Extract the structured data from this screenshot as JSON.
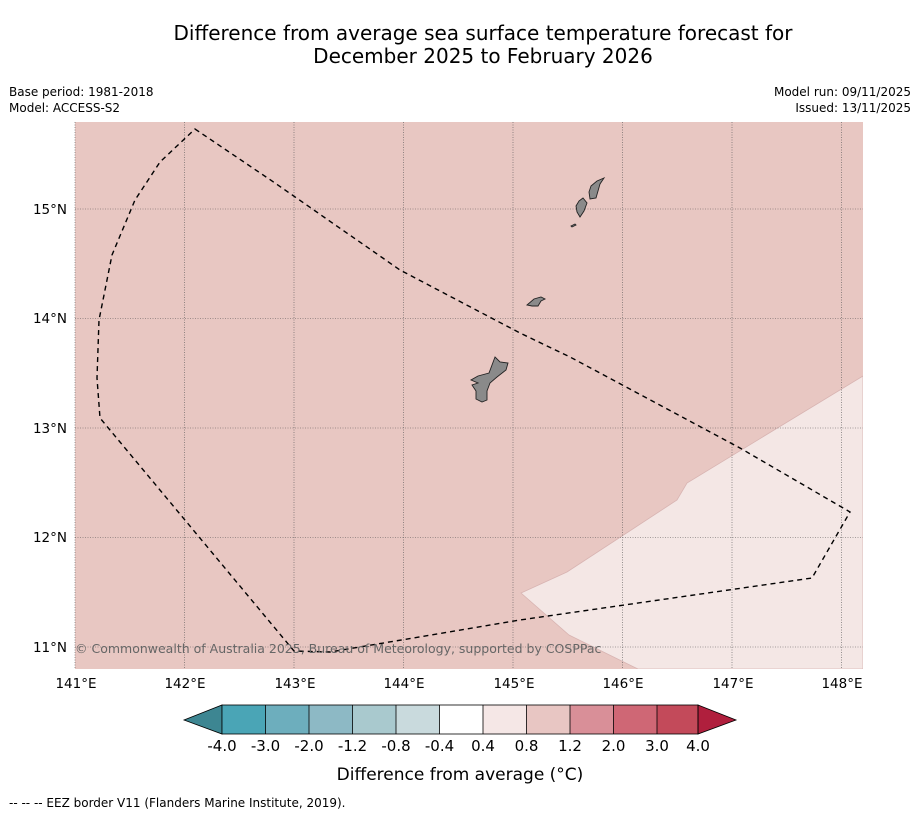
{
  "title_line1": "Difference from average sea surface temperature forecast for",
  "title_line2": "December 2025 to February 2026",
  "meta_left": [
    "Base period: 1981-2018",
    "Model: ACCESS-S2"
  ],
  "meta_right": [
    "Model run: 09/11/2025",
    "Issued: 13/11/2025"
  ],
  "copyright": "© Commonwealth of Australia 2025, Bureau of Meteorology, supported by COSPPac",
  "lon_ticks": [
    "141°E",
    "142°E",
    "143°E",
    "144°E",
    "145°E",
    "146°E",
    "147°E",
    "148°E"
  ],
  "lat_ticks": [
    "15°N",
    "14°N",
    "13°N",
    "12°N",
    "11°N"
  ],
  "colorbar": {
    "labels": [
      "-4.0",
      "-3.0",
      "-2.0",
      "-1.2",
      "-0.8",
      "-0.4",
      "0.4",
      "0.8",
      "1.2",
      "2.0",
      "3.0",
      "4.0"
    ],
    "colors": [
      "#4aa5b6",
      "#6daebd",
      "#8db9c5",
      "#a9c9ce",
      "#c9dadd",
      "#ffffff",
      "#f5e7e6",
      "#e8c6c3",
      "#d98f98",
      "#cf6775",
      "#c34a5a"
    ],
    "under_color": "#3d8692",
    "over_color": "#b01f3d",
    "title": "Difference from average (°C)"
  },
  "colors": {
    "anomaly_04_08": "#e8c7c2",
    "anomaly_0_04": "#f4e7e5",
    "land": "#8a8a8a"
  },
  "legend_note": "--  --  -- EEZ border V11 (Flanders Marine Institute, 2019)."
}
